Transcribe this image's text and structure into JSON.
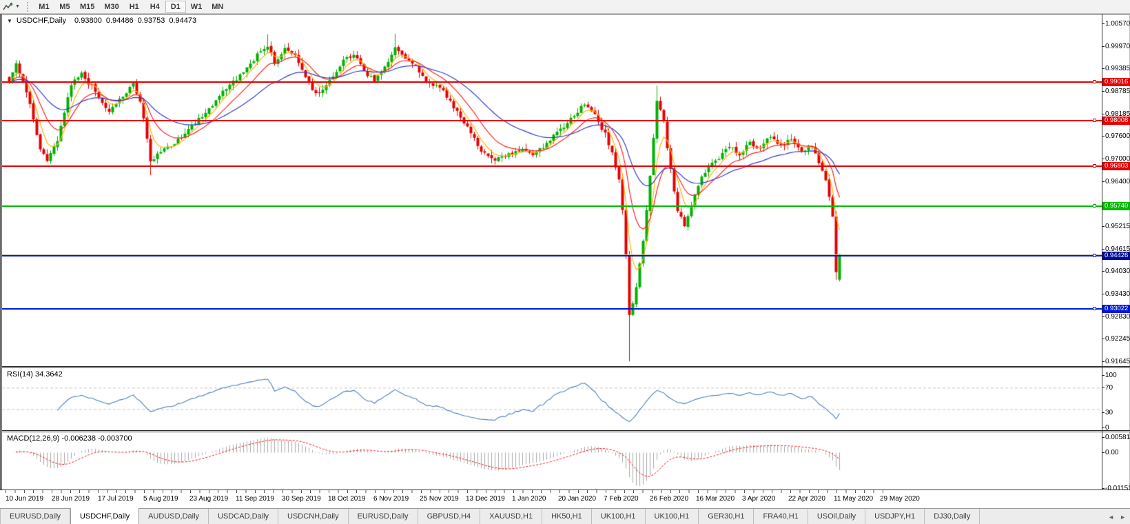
{
  "toolbar": {
    "timeframes": [
      "M1",
      "M5",
      "M15",
      "M30",
      "H1",
      "H4",
      "D1",
      "W1",
      "MN"
    ],
    "active_timeframe": "D1",
    "tools_icon": "chart-tools"
  },
  "icons": {
    "dropdown": "▼",
    "tab_prev": "◄",
    "tab_next": "►"
  },
  "chart": {
    "title_symbol": "USDCHF,Daily",
    "open": "0.93800",
    "high": "0.94486",
    "low": "0.93753",
    "close": "0.94473"
  },
  "chart_data": {
    "type": "candlestick",
    "symbol": "USDCHF",
    "timeframe": "Daily",
    "title": "USDCHF,Daily 0.93800 0.94486 0.93753 0.94473",
    "last_bar": {
      "open": 0.938,
      "high": 0.94486,
      "low": 0.93753,
      "close": 0.94473
    },
    "y_ticks": [
      "1.00570",
      "0.99970",
      "0.99385",
      "0.98785",
      "0.98185",
      "0.97600",
      "0.97000",
      "0.96400",
      "0.95215",
      "0.94615",
      "0.94030",
      "0.93430",
      "0.92830",
      "0.92245",
      "0.91645"
    ],
    "y_range_visible": [
      0.91517,
      1.00807
    ],
    "x_labels": [
      "10 Jun 2019",
      "28 Jun 2019",
      "17 Jul 2019",
      "5 Aug 2019",
      "23 Aug 2019",
      "11 Sep 2019",
      "30 Sep 2019",
      "18 Oct 2019",
      "6 Nov 2019",
      "25 Nov 2019",
      "13 Dec 2019",
      "1 Jan 2020",
      "20 Jan 2020",
      "7 Feb 2020",
      "26 Feb 2020",
      "16 Mar 2020",
      "3 Apr 2020",
      "22 Apr 2020",
      "11 May 2020",
      "29 May 2020"
    ],
    "horizontal_lines": [
      {
        "price": 0.99016,
        "label": "0.99016",
        "color": "#e60000",
        "label_bg": "#e60000"
      },
      {
        "price": 0.98008,
        "label": "0.98008",
        "color": "#e60000",
        "label_bg": "#e60000"
      },
      {
        "price": 0.96803,
        "label": "0.96803",
        "color": "#e60000",
        "label_bg": "#e60000"
      },
      {
        "price": 0.9574,
        "label": "0.95740",
        "color": "#00bb00",
        "label_bg": "#00bb00"
      },
      {
        "price": 0.94426,
        "label": "0.94426",
        "color": "#0018d8",
        "label_bg": "#000a9a"
      },
      {
        "price": 0.93022,
        "label": "0.93022",
        "color": "#0018d8",
        "label_bg": "#0018d8"
      }
    ],
    "current_price_line": 0.94473,
    "bull_color": "#00b200",
    "bear_color": "#ea0000",
    "moving_averages": [
      {
        "name": "fast",
        "period": 5,
        "color": "#ffb400"
      },
      {
        "name": "medium",
        "period": 12,
        "color": "#ff2020"
      },
      {
        "name": "slow",
        "period": 30,
        "color": "#2f3bd0"
      }
    ],
    "price_path": [
      [
        0,
        0.9905
      ],
      [
        2,
        0.9952
      ],
      [
        4,
        0.99
      ],
      [
        6,
        0.984
      ],
      [
        9,
        0.9725
      ],
      [
        11,
        0.9698
      ],
      [
        14,
        0.9748
      ],
      [
        18,
        0.9895
      ],
      [
        21,
        0.9922
      ],
      [
        25,
        0.988
      ],
      [
        29,
        0.982
      ],
      [
        33,
        0.9868
      ],
      [
        36,
        0.9898
      ],
      [
        38,
        0.9855
      ],
      [
        40,
        0.975
      ],
      [
        41,
        0.9695
      ],
      [
        44,
        0.9718
      ],
      [
        48,
        0.974
      ],
      [
        53,
        0.979
      ],
      [
        58,
        0.983
      ],
      [
        63,
        0.9888
      ],
      [
        68,
        0.9928
      ],
      [
        73,
        0.9985
      ],
      [
        75,
        1.0
      ],
      [
        77,
        0.9955
      ],
      [
        80,
        0.999
      ],
      [
        83,
        0.9968
      ],
      [
        86,
        0.9915
      ],
      [
        89,
        0.9868
      ],
      [
        93,
        0.9905
      ],
      [
        97,
        0.9958
      ],
      [
        100,
        0.9978
      ],
      [
        103,
        0.993
      ],
      [
        106,
        0.9908
      ],
      [
        109,
        0.9945
      ],
      [
        112,
        0.9992
      ],
      [
        115,
        0.9965
      ],
      [
        118,
        0.9945
      ],
      [
        121,
        0.9902
      ],
      [
        125,
        0.9892
      ],
      [
        129,
        0.9838
      ],
      [
        133,
        0.9785
      ],
      [
        137,
        0.9718
      ],
      [
        141,
        0.9698
      ],
      [
        145,
        0.971
      ],
      [
        149,
        0.9722
      ],
      [
        152,
        0.9705
      ],
      [
        156,
        0.9742
      ],
      [
        160,
        0.9775
      ],
      [
        164,
        0.9815
      ],
      [
        167,
        0.9845
      ],
      [
        170,
        0.9812
      ],
      [
        173,
        0.9765
      ],
      [
        175,
        0.9715
      ],
      [
        177,
        0.964
      ],
      [
        178,
        0.956
      ],
      [
        179,
        0.944
      ],
      [
        180,
        0.9285
      ],
      [
        181,
        0.932
      ],
      [
        182,
        0.936
      ],
      [
        184,
        0.948
      ],
      [
        186,
        0.965
      ],
      [
        187,
        0.976
      ],
      [
        188,
        0.9858
      ],
      [
        190,
        0.9795
      ],
      [
        192,
        0.9668
      ],
      [
        194,
        0.9565
      ],
      [
        196,
        0.9522
      ],
      [
        198,
        0.9578
      ],
      [
        200,
        0.9632
      ],
      [
        203,
        0.968
      ],
      [
        206,
        0.9702
      ],
      [
        209,
        0.9732
      ],
      [
        212,
        0.9712
      ],
      [
        215,
        0.9742
      ],
      [
        218,
        0.9722
      ],
      [
        221,
        0.9762
      ],
      [
        224,
        0.9735
      ],
      [
        227,
        0.9752
      ],
      [
        230,
        0.9722
      ],
      [
        233,
        0.9735
      ],
      [
        235,
        0.9692
      ],
      [
        237,
        0.9645
      ],
      [
        239,
        0.9545
      ],
      [
        240,
        0.94
      ],
      [
        241,
        0.94473
      ]
    ],
    "wick_overrides": {
      "11": {
        "low": 0.969
      },
      "41": {
        "low": 0.9656
      },
      "75": {
        "high": 1.0028
      },
      "112": {
        "high": 1.003
      },
      "180": {
        "low": 0.9164
      },
      "188": {
        "high": 0.9893
      },
      "240": {
        "low": 0.938
      }
    },
    "indicators": {
      "rsi": {
        "label": "RSI(14) 34.3642",
        "name": "RSI",
        "period": 14,
        "value": 34.3642,
        "levels": [
          70,
          30
        ],
        "range": [
          0,
          100
        ],
        "axis": [
          "100",
          "70",
          "30",
          "0"
        ],
        "line_color": "#4a7ebb",
        "level_color": "#c4c4c4"
      },
      "macd": {
        "label": "MACD(12,26,9) -0.006238 -0.003700",
        "params": [
          12,
          26,
          9
        ],
        "macd_value": -0.006238,
        "signal_value": -0.0037,
        "axis": [
          "0.005818",
          "0.00",
          "-0.011514"
        ],
        "range": [
          0.005818,
          -0.011514
        ],
        "histogram_color": "#a8a8a8",
        "signal_color": "#ff1010"
      }
    }
  },
  "tabs": {
    "items": [
      {
        "label": "EURUSD,Daily",
        "active": false
      },
      {
        "label": "USDCHF,Daily",
        "active": true
      },
      {
        "label": "AUDUSD,Daily",
        "active": false
      },
      {
        "label": "USDCAD,Daily",
        "active": false
      },
      {
        "label": "USDCNH,Daily",
        "active": false
      },
      {
        "label": "EURUSD,Daily",
        "active": false
      },
      {
        "label": "GBPUSD,H4",
        "active": false
      },
      {
        "label": "XAUUSD,H1",
        "active": false
      },
      {
        "label": "HK50,H1",
        "active": false
      },
      {
        "label": "UK100,H1",
        "active": false
      },
      {
        "label": "UK100,H1",
        "active": false
      },
      {
        "label": "GER30,H1",
        "active": false
      },
      {
        "label": "FRA40,H1",
        "active": false
      },
      {
        "label": "USOil,Daily",
        "active": false
      },
      {
        "label": "USDJPY,H1",
        "active": false
      },
      {
        "label": "DJ30,Daily",
        "active": false
      }
    ]
  }
}
